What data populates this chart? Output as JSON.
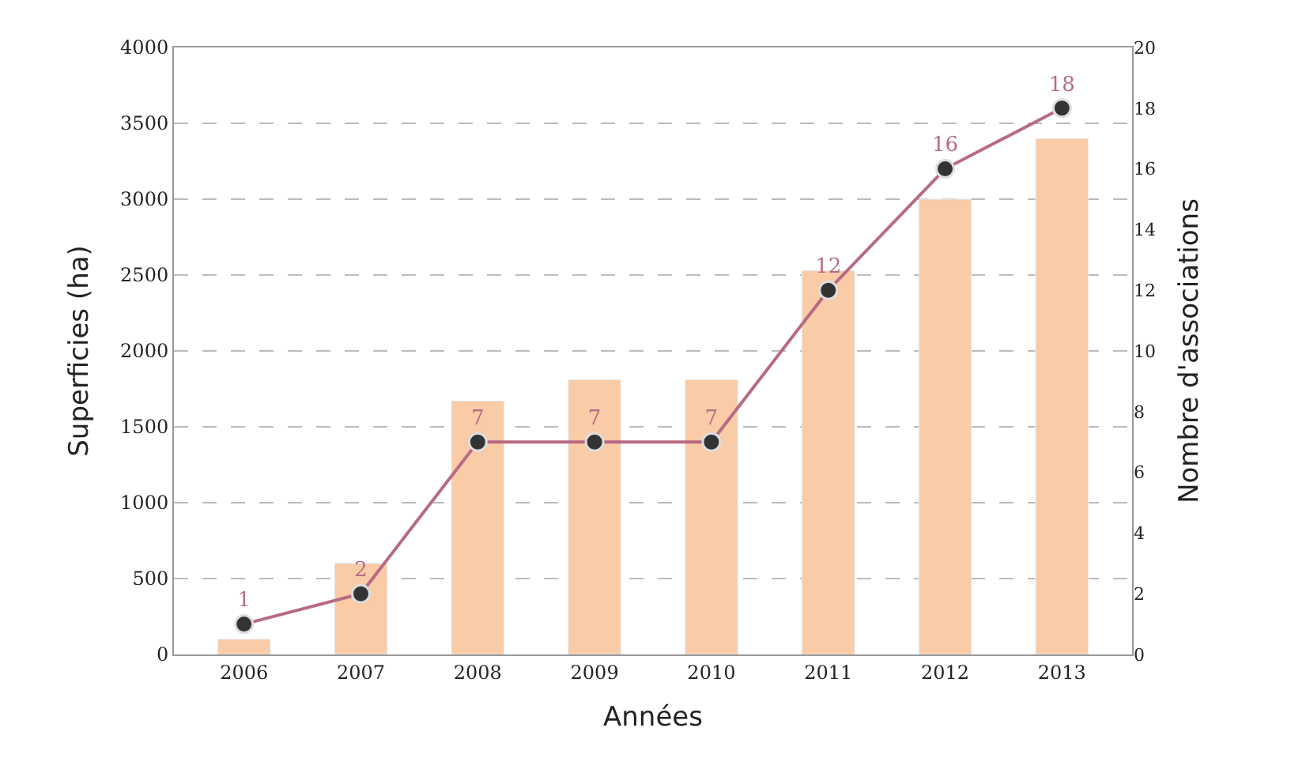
{
  "chart_data": {
    "type": "bar",
    "xlabel": "Années",
    "ylabel": "Superficies (ha)",
    "y2label": "Nombre d'associations",
    "categories": [
      "2006",
      "2007",
      "2008",
      "2009",
      "2010",
      "2011",
      "2012",
      "2013"
    ],
    "series": [
      {
        "color": "#f9cba6",
        "values": [
          100,
          600,
          1670,
          1810,
          1810,
          2530,
          3000,
          3400
        ]
      },
      {
        "type": "line",
        "axis": "y2",
        "color": "#b86a84",
        "values": [
          1,
          2,
          7,
          7,
          7,
          12,
          16,
          18
        ],
        "data_labels": true,
        "marker": "circle"
      }
    ],
    "ylim": [
      0,
      4000
    ],
    "yticks": [
      0,
      500,
      1000,
      1500,
      2000,
      2500,
      3000,
      3500,
      4000
    ],
    "y2lim": [
      0,
      20
    ],
    "y2ticks": [
      0,
      2,
      4,
      6,
      8,
      10,
      12,
      14,
      16,
      18,
      20
    ],
    "grid": "y",
    "legend": false
  }
}
